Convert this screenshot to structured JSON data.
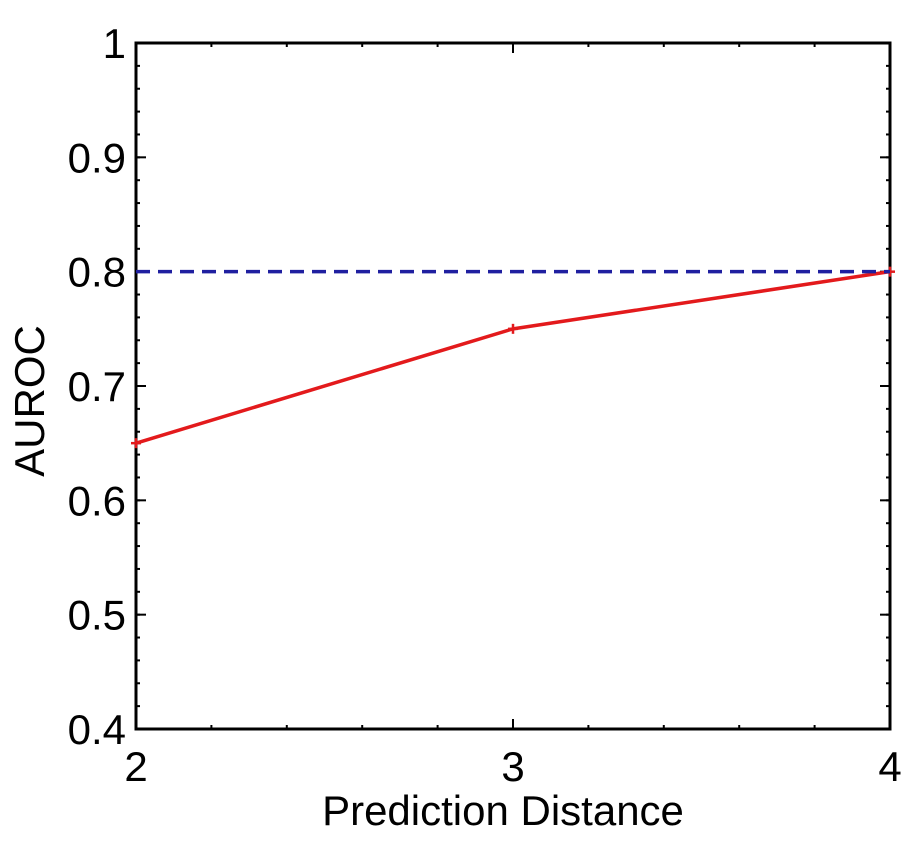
{
  "chart_data": {
    "type": "line",
    "title": "",
    "xlabel": "Prediction Distance",
    "ylabel": "AUROC",
    "xlim": [
      2,
      4
    ],
    "ylim": [
      0.4,
      1
    ],
    "xticks": [
      2,
      3,
      4
    ],
    "xtick_labels": [
      "2",
      "3",
      "4"
    ],
    "yticks": [
      0.4,
      0.5,
      0.6,
      0.7,
      0.8,
      0.9,
      1
    ],
    "ytick_labels": [
      "0.4",
      "0.5",
      "0.6",
      "0.7",
      "0.8",
      "0.9",
      "1"
    ],
    "grid": false,
    "legend": "none",
    "series": [
      {
        "x": [
          2,
          3,
          4
        ],
        "y": [
          0.65,
          0.75,
          0.8
        ],
        "color": "#e31a1c",
        "style": "solid",
        "marker": "plus"
      },
      {
        "x": [
          2,
          4
        ],
        "y": [
          0.8,
          0.8
        ],
        "color": "#1f1fa0",
        "style": "dashed",
        "marker": "none"
      }
    ]
  }
}
